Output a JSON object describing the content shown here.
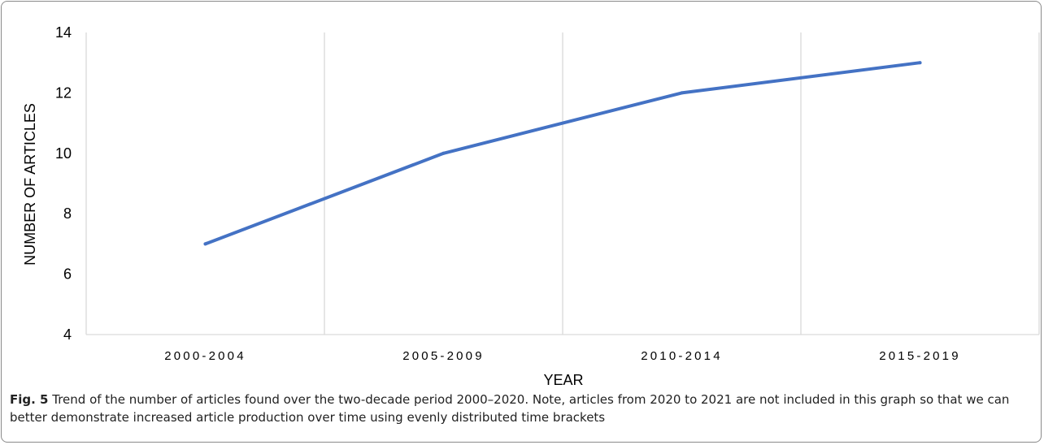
{
  "chart_data": {
    "type": "line",
    "categories": [
      "2000-2004",
      "2005-2009",
      "2010-2014",
      "2015-2019"
    ],
    "series": [
      {
        "values": [
          7,
          10,
          12,
          13
        ],
        "color": "#4472C4"
      }
    ],
    "xlabel": "YEAR",
    "ylabel": "NUMBER OF ARTICLES",
    "ylim": [
      4,
      14
    ],
    "yticks": [
      4,
      6,
      8,
      10,
      12,
      14
    ],
    "grid": "vertical",
    "gridColor": "#d9d9d9"
  },
  "caption": {
    "label": "Fig. 5",
    "text": "Trend of the number of articles found over the two-decade period 2000–2020. Note, articles from 2020 to 2021 are not included in this graph so that we can better demonstrate increased article production over time using evenly distributed time brackets"
  }
}
